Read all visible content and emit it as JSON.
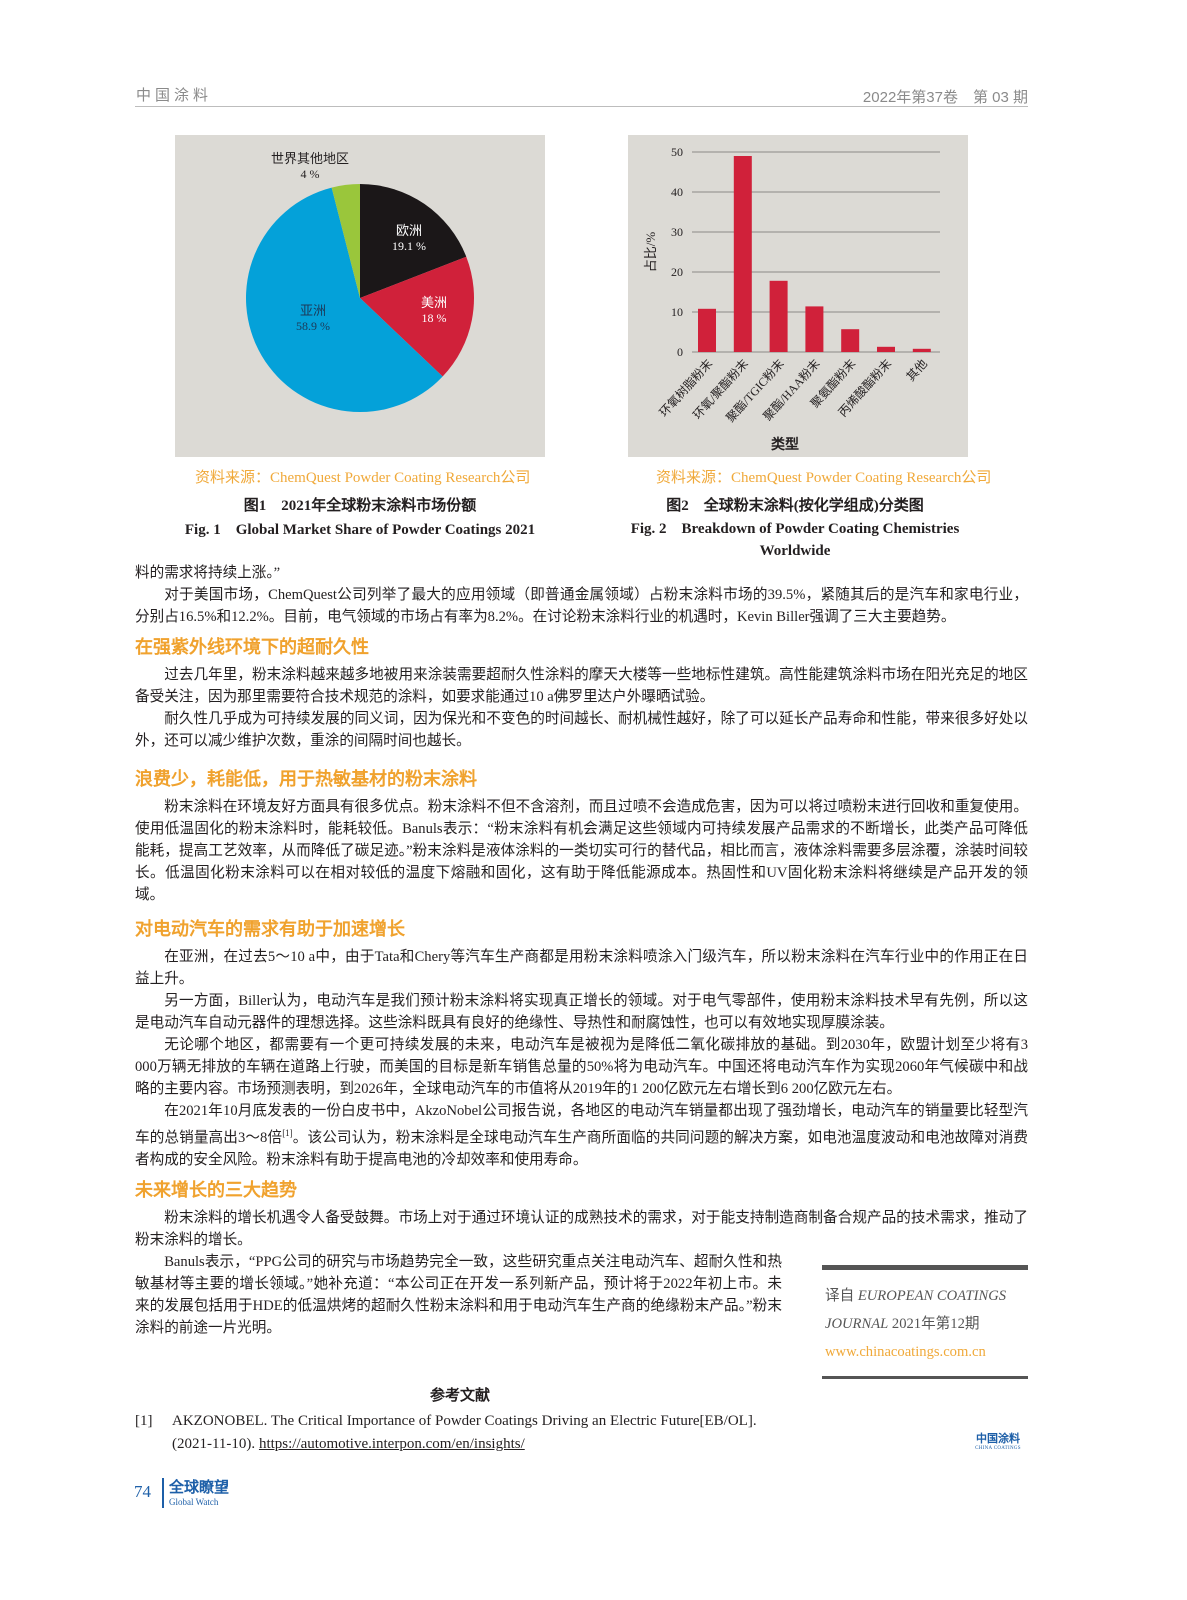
{
  "header": {
    "journal": "中国涂料",
    "issue": "2022年第37卷　第 03 期"
  },
  "figures": [
    {
      "source": "资料来源：ChemQuest Powder Coating Research公司",
      "caption_cn": "图1　2021年全球粉末涂料市场份额",
      "caption_en": "Fig. 1　Global Market Share of Powder Coatings 2021"
    },
    {
      "source": "资料来源：ChemQuest Powder Coating Research公司",
      "caption_cn": "图2　全球粉末涂料(按化学组成)分类图",
      "caption_en": "Fig. 2　Breakdown of Powder Coating Chemistries Worldwide"
    }
  ],
  "chart_data": [
    {
      "type": "pie",
      "title": "",
      "slices": [
        {
          "name": "欧洲",
          "value": 19.1,
          "label": "19.1 %",
          "color": "#1b1718"
        },
        {
          "name": "美洲",
          "value": 18,
          "label": "18 %",
          "color": "#d0213a"
        },
        {
          "name": "亚洲",
          "value": 58.9,
          "label": "58.9 %",
          "color": "#04a1d9"
        },
        {
          "name": "世界其他地区",
          "value": 4,
          "label": "4 %",
          "color": "#9ac63b"
        }
      ]
    },
    {
      "type": "bar",
      "title": "",
      "xlabel": "类型",
      "ylabel": "占比/%",
      "ylim": [
        0,
        50
      ],
      "yticks": [
        0,
        10,
        20,
        30,
        40,
        50
      ],
      "grid": true,
      "color": "#d0213a",
      "categories": [
        "环氧树脂粉末",
        "环氧/聚酯粉末",
        "聚酯/TGIC粉末",
        "聚酯/HAA粉末",
        "聚氨酯粉末",
        "丙烯酸酯粉末",
        "其他"
      ],
      "values": [
        10.8,
        49,
        17.8,
        11.4,
        5.7,
        1.3,
        0.8
      ]
    }
  ],
  "article": {
    "p0": "料的需求将持续上涨。”",
    "p1": "对于美国市场，ChemQuest公司列举了最大的应用领域（即普通金属领域）占粉末涂料市场的39.5%，紧随其后的是汽车和家电行业，分别占16.5%和12.2%。目前，电气领域的市场占有率为8.2%。在讨论粉末涂料行业的机遇时，Kevin Biller强调了三大主要趋势。",
    "h1": "在强紫外线环境下的超耐久性",
    "p2": "过去几年里，粉末涂料越来越多地被用来涂装需要超耐久性涂料的摩天大楼等一些地标性建筑。高性能建筑涂料市场在阳光充足的地区备受关注，因为那里需要符合技术规范的涂料，如要求能通过10 a佛罗里达户外曝晒试验。",
    "p3": "耐久性几乎成为可持续发展的同义词，因为保光和不变色的时间越长、耐机械性越好，除了可以延长产品寿命和性能，带来很多好处以外，还可以减少维护次数，重涂的间隔时间也越长。",
    "h2": "浪费少，耗能低，用于热敏基材的粉末涂料",
    "p4": "粉末涂料在环境友好方面具有很多优点。粉末涂料不但不含溶剂，而且过喷不会造成危害，因为可以将过喷粉末进行回收和重复使用。使用低温固化的粉末涂料时，能耗较低。Banuls表示：“粉末涂料有机会满足这些领域内可持续发展产品需求的不断增长，此类产品可降低能耗，提高工艺效率，从而降低了碳足迹。”粉末涂料是液体涂料的一类切实可行的替代品，相比而言，液体涂料需要多层涂覆，涂装时间较长。低温固化粉末涂料可以在相对较低的温度下熔融和固化，这有助于降低能源成本。热固性和UV固化粉末涂料将继续是产品开发的领域。",
    "h3": "对电动汽车的需求有助于加速增长",
    "p5": "在亚洲，在过去5～10 a中，由于Tata和Chery等汽车生产商都是用粉末涂料喷涂入门级汽车，所以粉末涂料在汽车行业中的作用正在日益上升。",
    "p6": "另一方面，Biller认为，电动汽车是我们预计粉末涂料将实现真正增长的领域。对于电气零部件，使用粉末涂料技术早有先例，所以这是电动汽车自动元器件的理想选择。这些涂料既具有良好的绝缘性、导热性和耐腐蚀性，也可以有效地实现厚膜涂装。",
    "p7": "无论哪个地区，都需要有一个更可持续发展的未来，电动汽车是被视为是降低二氧化碳排放的基础。到2030年，欧盟计划至少将有3 000万辆无排放的车辆在道路上行驶，而美国的目标是新车销售总量的50%将为电动汽车。中国还将电动汽车作为实现2060年气候碳中和战略的主要内容。市场预测表明，到2026年，全球电动汽车的市值将从2019年的1 200亿欧元左右增长到6 200亿欧元左右。",
    "p8a": "在2021年10月底发表的一份白皮书中，AkzoNobel公司报告说，各地区的电动汽车销量都出现了强劲增长，电动汽车的销量要比轻型汽车的总销量高出3～8倍",
    "p8sup": "[1]",
    "p8b": "。该公司认为，粉末涂料是全球电动汽车生产商所面临的共同问题的解决方案，如电池温度波动和电池故障对消费者构成的安全风险。粉末涂料有助于提高电池的冷却效率和使用寿命。",
    "h4": "未来增长的三大趋势",
    "p9": "粉末涂料的增长机遇令人备受鼓舞。市场上对于通过环境认证的成熟技术的需求，对于能支持制造商制备合规产品的技术需求，推动了粉末涂料的增长。",
    "p10": "Banuls表示，“PPG公司的研究与市场趋势完全一致，这些研究重点关注电动汽车、超耐久性和热敏基材等主要的增长领域。”她补充道：“本公司正在开发一系列新产品，预计将于2022年初上市。未来的发展包括用于HDE的低温烘烤的超耐久性粉末涂料和用于电动汽车生产商的绝缘粉末产品。”粉末涂料的前途一片光明。"
  },
  "sidebar": {
    "prefix": "译自 ",
    "journal_a": "EUROPEAN COATINGS",
    "journal_b": "JOURNAL",
    "issue": " 2021年第12期",
    "url": "www.chinacoatings.com.cn"
  },
  "references": {
    "title": "参考文献",
    "items": [
      {
        "num": "[1]",
        "text": "AKZONOBEL. The Critical Importance of Powder Coatings Driving an Electric Future[EB/OL].(2021-11-10). ",
        "link": "https://automotive.interpon.com/en/insights/"
      }
    ]
  },
  "logo": {
    "cn": "中国涂料",
    "en": "CHINA COATINGS"
  },
  "footer": {
    "page": "74",
    "section_cn": "全球瞭望",
    "section_en": "Global Watch"
  }
}
